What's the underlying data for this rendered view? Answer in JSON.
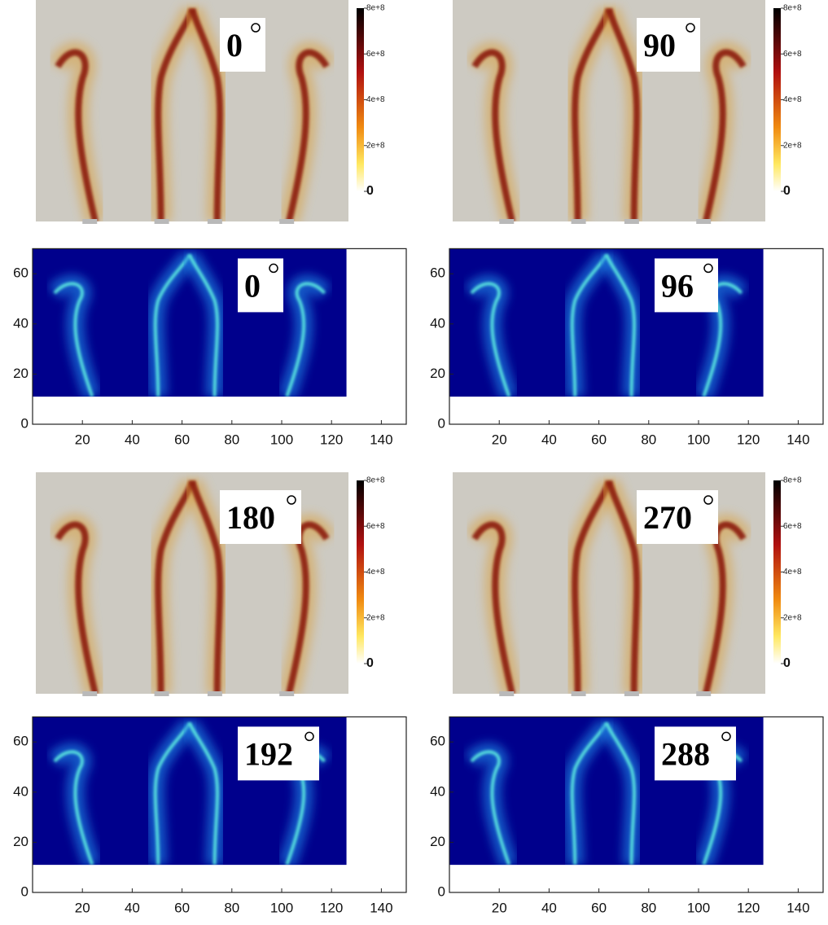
{
  "panels": [
    {
      "kind": "simulation",
      "angle": "0"
    },
    {
      "kind": "simulation",
      "angle": "90"
    },
    {
      "kind": "experiment",
      "angle": "0"
    },
    {
      "kind": "experiment",
      "angle": "96"
    },
    {
      "kind": "simulation",
      "angle": "180"
    },
    {
      "kind": "simulation",
      "angle": "270"
    },
    {
      "kind": "experiment",
      "angle": "192"
    },
    {
      "kind": "experiment",
      "angle": "288"
    }
  ],
  "colorbar": {
    "lim": [
      0,
      800000000
    ],
    "ticks": [
      {
        "value": 800000000,
        "label": "8e+8"
      },
      {
        "value": 600000000,
        "label": "6e+8"
      },
      {
        "value": 400000000,
        "label": "4e+8"
      },
      {
        "value": 200000000,
        "label": "2e+8"
      },
      0
    ]
  },
  "experiment_axes": {
    "xlim": [
      0,
      150
    ],
    "ylim": [
      0,
      70
    ],
    "xticks": [
      20,
      40,
      60,
      80,
      100,
      120,
      140
    ],
    "yticks": [
      0,
      20,
      40,
      60
    ]
  }
}
